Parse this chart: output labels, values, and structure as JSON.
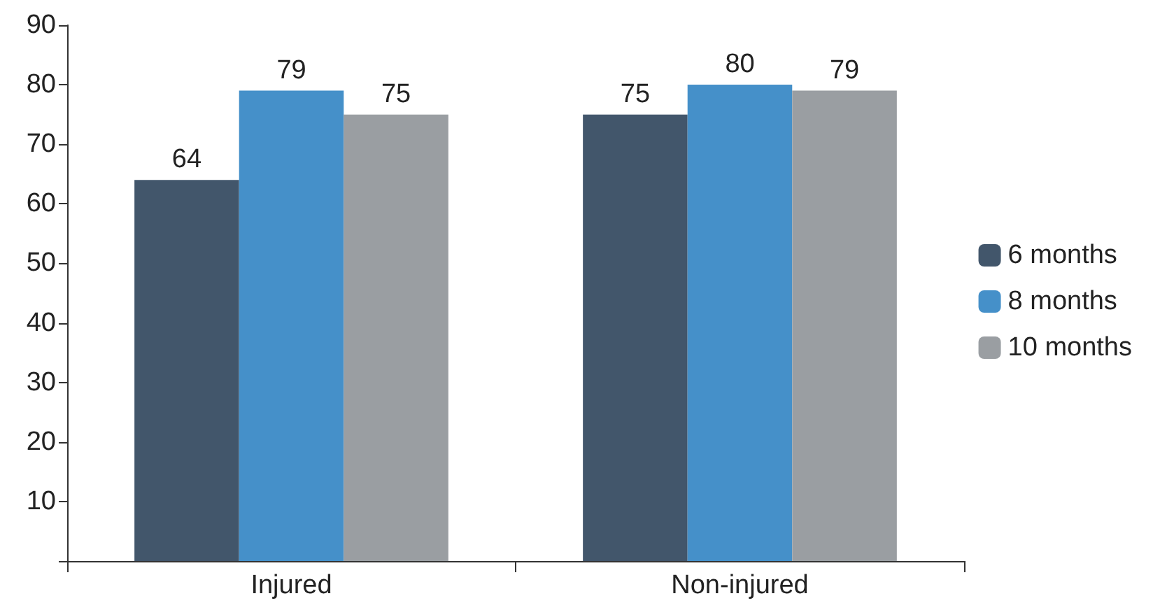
{
  "chart_data": {
    "type": "bar",
    "categories": [
      "Injured",
      "Non-injured"
    ],
    "series": [
      {
        "name": "6 months",
        "color": "#42566b",
        "values": [
          64,
          75
        ]
      },
      {
        "name": "8 months",
        "color": "#4590c9",
        "values": [
          79,
          80
        ]
      },
      {
        "name": "10 months",
        "color": "#9a9ea2",
        "values": [
          75,
          79
        ]
      }
    ],
    "ylim": [
      0,
      90
    ],
    "yticks": [
      {
        "value": 0,
        "label": null
      },
      10,
      20,
      30,
      40,
      50,
      60,
      70,
      80,
      90
    ],
    "data_labels": true,
    "grid": false,
    "legend": "right"
  }
}
